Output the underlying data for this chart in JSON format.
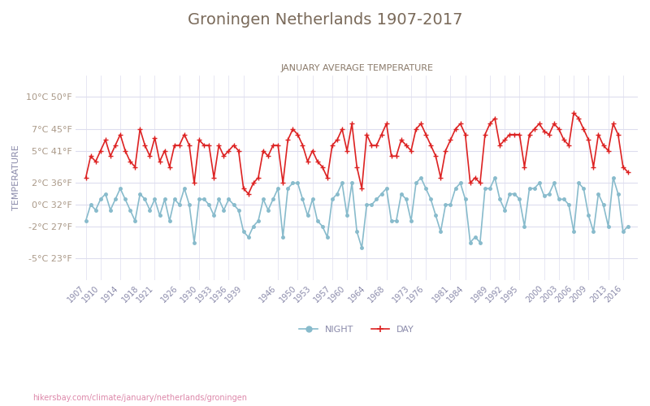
{
  "title": "Groningen Netherlands 1907-2017",
  "subtitle": "JANUARY AVERAGE TEMPERATURE",
  "ylabel": "TEMPERATURE",
  "footer": "hikersbay.com/climate/january/netherlands/groningen",
  "title_color": "#7a6a5a",
  "subtitle_color": "#8a7a6a",
  "axis_label_color": "#8a8aaa",
  "tick_color": "#aa9988",
  "background_color": "#ffffff",
  "grid_color": "#ddddee",
  "line_day_color": "#dd2222",
  "line_night_color": "#88bbcc",
  "yticks_c": [
    10,
    7,
    5,
    2,
    0,
    -2,
    -5
  ],
  "yticks_f": [
    50,
    45,
    41,
    36,
    32,
    27,
    23
  ],
  "ylim": [
    -7,
    12
  ],
  "xtick_years": [
    1907,
    1910,
    1914,
    1918,
    1921,
    1926,
    1930,
    1933,
    1936,
    1939,
    1946,
    1950,
    1953,
    1957,
    1960,
    1964,
    1968,
    1973,
    1976,
    1981,
    1984,
    1989,
    1992,
    1995,
    2000,
    2003,
    2006,
    2009,
    2013,
    2016
  ],
  "years": [
    1907,
    1908,
    1909,
    1910,
    1911,
    1912,
    1913,
    1914,
    1915,
    1916,
    1917,
    1918,
    1919,
    1920,
    1921,
    1922,
    1923,
    1924,
    1925,
    1926,
    1927,
    1928,
    1929,
    1930,
    1931,
    1932,
    1933,
    1934,
    1935,
    1936,
    1937,
    1938,
    1939,
    1940,
    1941,
    1942,
    1943,
    1944,
    1945,
    1946,
    1947,
    1948,
    1949,
    1950,
    1951,
    1952,
    1953,
    1954,
    1955,
    1956,
    1957,
    1958,
    1959,
    1960,
    1961,
    1962,
    1963,
    1964,
    1965,
    1966,
    1967,
    1968,
    1969,
    1970,
    1971,
    1972,
    1973,
    1974,
    1975,
    1976,
    1977,
    1978,
    1979,
    1980,
    1981,
    1982,
    1983,
    1984,
    1985,
    1986,
    1987,
    1988,
    1989,
    1990,
    1991,
    1992,
    1993,
    1994,
    1995,
    1996,
    1997,
    1998,
    1999,
    2000,
    2001,
    2002,
    2003,
    2004,
    2005,
    2006,
    2007,
    2008,
    2009,
    2010,
    2011,
    2012,
    2013,
    2014,
    2015,
    2016,
    2017
  ],
  "day_temps": [
    2.5,
    4.5,
    4.0,
    5.0,
    6.0,
    4.5,
    5.5,
    6.5,
    5.0,
    4.0,
    3.5,
    7.0,
    5.5,
    4.5,
    6.2,
    4.0,
    5.0,
    3.5,
    5.5,
    5.5,
    6.5,
    5.5,
    2.0,
    6.0,
    5.5,
    5.5,
    2.5,
    5.5,
    4.5,
    5.0,
    5.5,
    5.0,
    1.5,
    1.0,
    2.0,
    2.5,
    5.0,
    4.5,
    5.5,
    5.5,
    2.0,
    6.0,
    7.0,
    6.5,
    5.5,
    4.0,
    5.0,
    4.0,
    3.5,
    2.5,
    5.5,
    6.0,
    7.0,
    5.0,
    7.5,
    3.5,
    1.5,
    6.5,
    5.5,
    5.5,
    6.5,
    7.5,
    4.5,
    4.5,
    6.0,
    5.5,
    5.0,
    7.0,
    7.5,
    6.5,
    5.5,
    4.5,
    2.5,
    5.0,
    6.0,
    7.0,
    7.5,
    6.5,
    2.0,
    2.5,
    2.0,
    6.5,
    7.5,
    8.0,
    5.5,
    6.0,
    6.5,
    6.5,
    6.5,
    3.5,
    6.5,
    7.0,
    7.5,
    6.8,
    6.5,
    7.5,
    7.0,
    6.0,
    5.5,
    8.5,
    8.0,
    7.0,
    6.0,
    3.5,
    6.5,
    5.5,
    5.0,
    7.5,
    6.5,
    3.5,
    3.0
  ],
  "night_temps": [
    -1.5,
    0.0,
    -0.5,
    0.5,
    1.0,
    -0.5,
    0.5,
    1.5,
    0.5,
    -0.5,
    -1.5,
    1.0,
    0.5,
    -0.5,
    0.5,
    -1.0,
    0.5,
    -1.5,
    0.5,
    0.0,
    1.5,
    0.0,
    -3.5,
    0.5,
    0.5,
    0.0,
    -1.0,
    0.5,
    -0.5,
    0.5,
    0.0,
    -0.5,
    -2.5,
    -3.0,
    -2.0,
    -1.5,
    0.5,
    -0.5,
    0.5,
    1.5,
    -3.0,
    1.5,
    2.0,
    2.0,
    0.5,
    -1.0,
    0.5,
    -1.5,
    -2.0,
    -3.0,
    0.5,
    1.0,
    2.0,
    -1.0,
    2.0,
    -2.5,
    -4.0,
    0.0,
    0.0,
    0.5,
    1.0,
    1.5,
    -1.5,
    -1.5,
    1.0,
    0.5,
    -1.5,
    2.0,
    2.5,
    1.5,
    0.5,
    -1.0,
    -2.5,
    0.0,
    0.0,
    1.5,
    2.0,
    0.5,
    -3.5,
    -3.0,
    -3.5,
    1.5,
    1.5,
    2.5,
    0.5,
    -0.5,
    1.0,
    1.0,
    0.5,
    -2.0,
    1.5,
    1.5,
    2.0,
    0.8,
    1.0,
    2.0,
    0.5,
    0.5,
    0.0,
    -2.5,
    2.0,
    1.5,
    -1.0,
    -2.5,
    1.0,
    0.0,
    -2.0,
    2.5,
    1.0,
    -2.5,
    -2.0
  ]
}
